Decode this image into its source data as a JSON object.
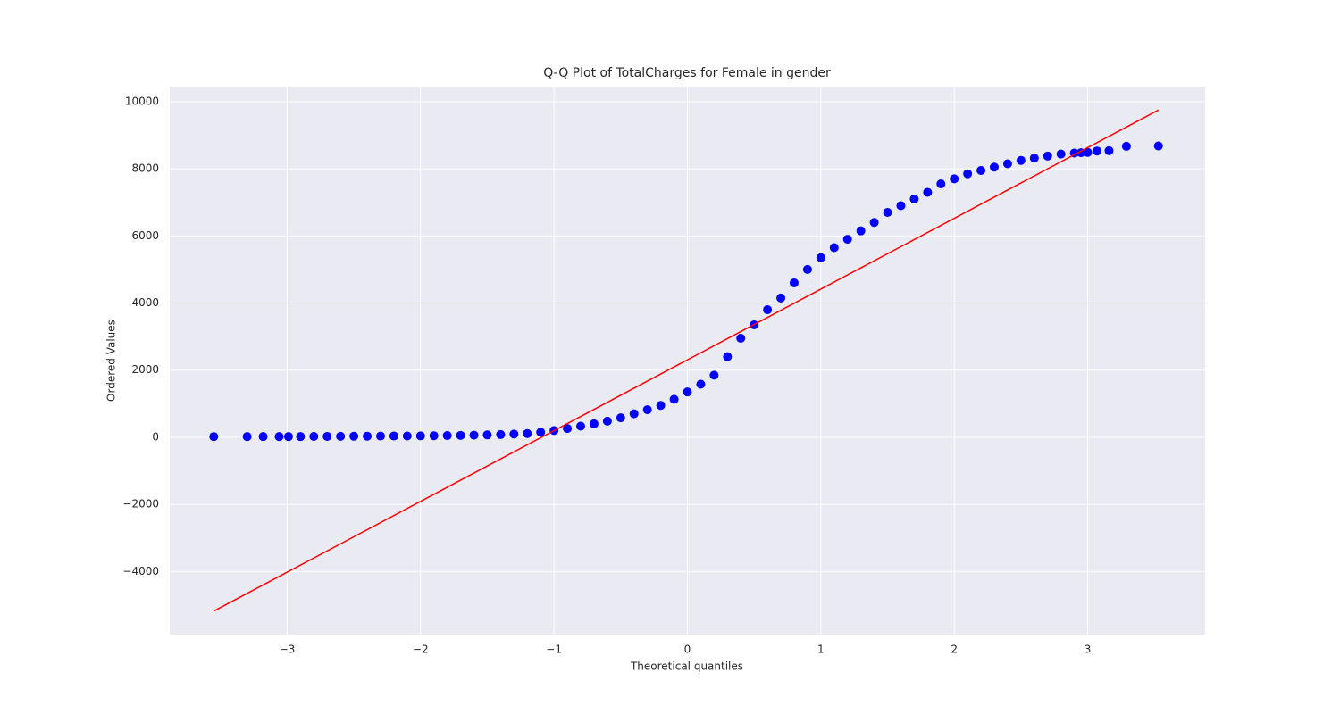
{
  "chart_data": {
    "type": "scatter",
    "title": "Q-Q Plot of TotalCharges for Female in gender",
    "xlabel": "Theoretical quantiles",
    "ylabel": "Ordered Values",
    "xlim": [
      -3.88,
      3.88
    ],
    "ylim": [
      -5880,
      10450
    ],
    "xticks": [
      {
        "value": -3,
        "label": "−3"
      },
      {
        "value": -2,
        "label": "−2"
      },
      {
        "value": -1,
        "label": "−1"
      },
      0,
      1,
      2,
      3
    ],
    "yticks": [
      {
        "value": -4000,
        "label": "−4000"
      },
      {
        "value": -2000,
        "label": "−2000"
      },
      0,
      2000,
      4000,
      6000,
      8000,
      10000
    ],
    "grid": true,
    "background": "#eaeaf2",
    "series": [
      {
        "color": "#0000ff",
        "mode": "markers",
        "x": [
          -3.55,
          -3.3,
          -3.18,
          -3.06,
          -2.99,
          -2.9,
          -2.8,
          -2.7,
          -2.6,
          -2.5,
          -2.4,
          -2.3,
          -2.2,
          -2.1,
          -2.0,
          -1.9,
          -1.8,
          -1.7,
          -1.6,
          -1.5,
          -1.4,
          -1.3,
          -1.2,
          -1.1,
          -1.0,
          -0.9,
          -0.8,
          -0.7,
          -0.6,
          -0.5,
          -0.4,
          -0.3,
          -0.2,
          -0.1,
          0,
          0.1,
          0.2,
          0.3,
          0.4,
          0.5,
          0.6,
          0.7,
          0.8,
          0.9,
          1.0,
          1.1,
          1.2,
          1.3,
          1.4,
          1.5,
          1.6,
          1.7,
          1.8,
          1.9,
          2.0,
          2.1,
          2.2,
          2.3,
          2.4,
          2.5,
          2.6,
          2.7,
          2.8,
          2.9,
          2.95,
          3.0,
          3.07,
          3.16,
          3.29,
          3.53
        ],
        "values": [
          19,
          20,
          20,
          20,
          20,
          20,
          25,
          25,
          28,
          30,
          32,
          35,
          36,
          38,
          40,
          45,
          50,
          55,
          62,
          70,
          80,
          95,
          110,
          150,
          200,
          260,
          330,
          400,
          480,
          580,
          700,
          820,
          950,
          1130,
          1350,
          1580,
          1850,
          2400,
          2950,
          3350,
          3800,
          4150,
          4600,
          5000,
          5350,
          5650,
          5900,
          6150,
          6400,
          6700,
          6900,
          7100,
          7300,
          7550,
          7700,
          7850,
          7950,
          8050,
          8150,
          8250,
          8320,
          8380,
          8440,
          8470,
          8480,
          8490,
          8530,
          8540,
          8670,
          8680
        ]
      },
      {
        "color": "#ff0000",
        "mode": "line",
        "x": [
          -3.55,
          3.53
        ],
        "values": [
          -5180,
          9750
        ]
      }
    ]
  }
}
